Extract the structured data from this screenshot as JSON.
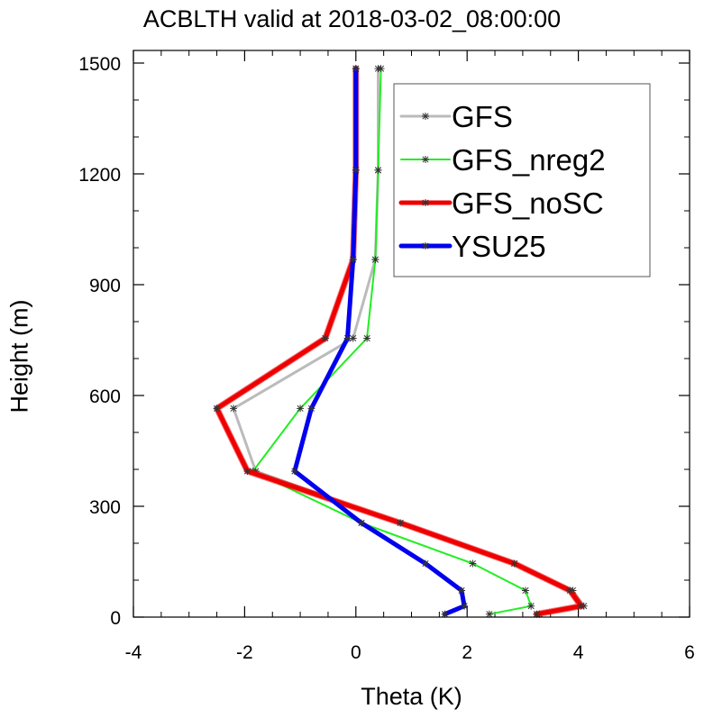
{
  "chart_data": {
    "type": "line",
    "title": "ACBLTH valid at 2018-03-02_08:00:00",
    "xlabel": "Theta (K)",
    "ylabel": "Height (m)",
    "xlim": [
      -4,
      6
    ],
    "ylim": [
      0,
      1500
    ],
    "x_ticks": [
      "-4",
      "-2",
      "0",
      "2",
      "4",
      "6"
    ],
    "y_ticks": [
      "0",
      "300",
      "600",
      "900",
      "1200",
      "1500"
    ],
    "legend_position": "top-right",
    "series": [
      {
        "name": "GFS",
        "color": "#bbbbbb",
        "width": 3,
        "points": [
          [
            3.3,
            8
          ],
          [
            4.1,
            30
          ],
          [
            3.9,
            72
          ],
          [
            2.85,
            145
          ],
          [
            0.8,
            255
          ],
          [
            -1.8,
            395
          ],
          [
            -2.2,
            565
          ],
          [
            -0.05,
            755
          ],
          [
            0.35,
            968
          ],
          [
            0.4,
            1210
          ],
          [
            0.4,
            1485
          ]
        ]
      },
      {
        "name": "GFS_nreg2",
        "color": "#22ee22",
        "width": 2,
        "points": [
          [
            2.4,
            8
          ],
          [
            3.15,
            30
          ],
          [
            3.05,
            72
          ],
          [
            2.1,
            145
          ],
          [
            0.1,
            255
          ],
          [
            -1.85,
            395
          ],
          [
            -1.0,
            565
          ],
          [
            0.2,
            755
          ],
          [
            0.35,
            968
          ],
          [
            0.4,
            1210
          ],
          [
            0.45,
            1485
          ]
        ]
      },
      {
        "name": "GFS_noSC",
        "color": "#ee0000",
        "width": 5,
        "points": [
          [
            3.25,
            8
          ],
          [
            4.05,
            30
          ],
          [
            3.85,
            72
          ],
          [
            2.85,
            145
          ],
          [
            0.8,
            255
          ],
          [
            -1.95,
            395
          ],
          [
            -2.5,
            565
          ],
          [
            -0.55,
            755
          ],
          [
            -0.05,
            968
          ],
          [
            0,
            1210
          ],
          [
            0,
            1485
          ]
        ]
      },
      {
        "name": "YSU25",
        "color": "#0000ee",
        "width": 5,
        "points": [
          [
            1.6,
            8
          ],
          [
            1.95,
            30
          ],
          [
            1.9,
            72
          ],
          [
            1.25,
            145
          ],
          [
            0.1,
            255
          ],
          [
            -1.1,
            395
          ],
          [
            -0.8,
            565
          ],
          [
            -0.15,
            755
          ],
          [
            -0.05,
            968
          ],
          [
            0,
            1210
          ],
          [
            0,
            1485
          ]
        ]
      }
    ]
  }
}
